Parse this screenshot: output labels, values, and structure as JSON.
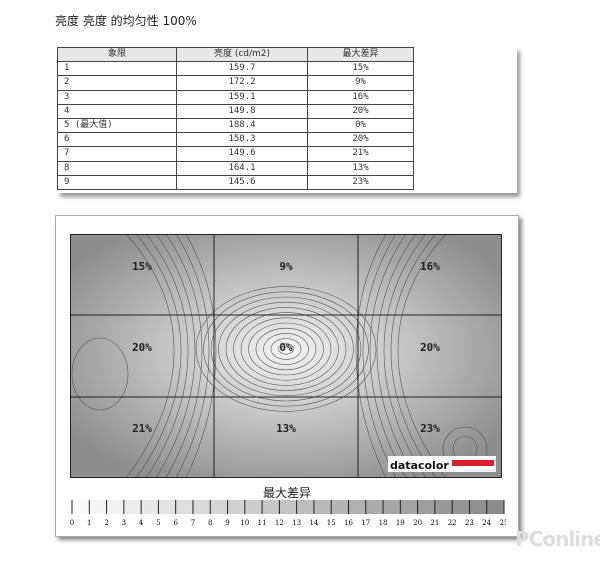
{
  "title": "亮度 亮度 的均匀性 100%",
  "table": {
    "headers": [
      "象限",
      "亮度 (cd/m2)",
      "最大差异"
    ],
    "rows": [
      [
        "1",
        "159.7",
        "15%"
      ],
      [
        "2",
        "172.2",
        "9%"
      ],
      [
        "3",
        "159.1",
        "16%"
      ],
      [
        "4",
        "149.8",
        "20%"
      ],
      [
        "5 (最大值)",
        "188.4",
        "0%"
      ],
      [
        "6",
        "150.3",
        "20%"
      ],
      [
        "7",
        "149.6",
        "21%"
      ],
      [
        "8",
        "164.1",
        "13%"
      ],
      [
        "9",
        "145.6",
        "23%"
      ]
    ]
  },
  "chart_data": {
    "type": "heatmap",
    "grid": "3x3",
    "cells": [
      "15%",
      "9%",
      "16%",
      "20%",
      "0%",
      "20%",
      "21%",
      "13%",
      "23%"
    ],
    "values": [
      15,
      9,
      16,
      20,
      0,
      20,
      21,
      13,
      23
    ],
    "scale_title": "最大差异",
    "scale_ticks": [
      0,
      1,
      2,
      3,
      4,
      5,
      6,
      7,
      8,
      9,
      10,
      11,
      12,
      13,
      14,
      15,
      16,
      17,
      18,
      19,
      20,
      21,
      22,
      23,
      24,
      25
    ],
    "scale_range": [
      0,
      25
    ],
    "logo": "datacolor",
    "logo_color": "#d9202a"
  },
  "watermark": "PConline"
}
